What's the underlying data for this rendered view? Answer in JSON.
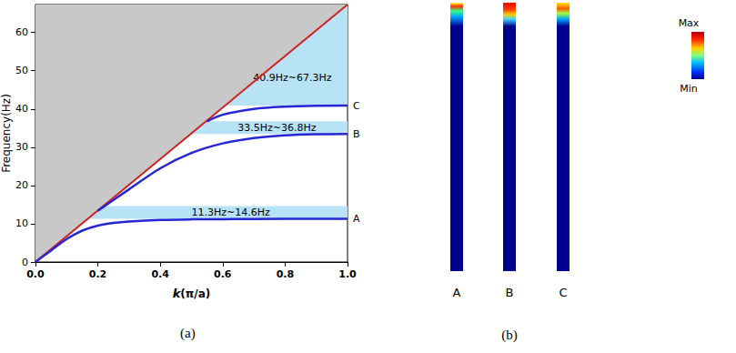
{
  "chart_data": {
    "type": "line",
    "panel_label": "(a)",
    "x_label": "k(π/a)",
    "y_label": "Frequency(Hz)",
    "xlim": [
      0,
      1
    ],
    "ylim": [
      0,
      67.3
    ],
    "xticks": [
      {
        "value": 0,
        "label": "0.0"
      },
      {
        "value": 0.2,
        "label": "0.2"
      },
      {
        "value": 0.4,
        "label": "0.4"
      },
      {
        "value": 0.6,
        "label": "0.6"
      },
      {
        "value": 0.8,
        "label": "0.8"
      },
      {
        "value": 1,
        "label": "1.0"
      }
    ],
    "yticks": [
      0,
      10,
      20,
      30,
      40,
      50,
      60
    ],
    "grid": false,
    "light_line": {
      "color": "#d02020",
      "x": [
        0,
        1
      ],
      "values": [
        0,
        67.3
      ]
    },
    "light_cone": {
      "color": "#c8c8c8"
    },
    "band_gaps": {
      "color": "#b8e2f6",
      "items": [
        {
          "label": "11.3Hz~14.6Hz",
          "range": [
            11.3,
            14.6
          ]
        },
        {
          "label": "33.5Hz~36.8Hz",
          "range": [
            33.5,
            36.8
          ]
        },
        {
          "label": "40.9Hz~67.3Hz",
          "range": [
            40.9,
            67.3
          ]
        }
      ]
    },
    "series": [
      {
        "name": "A",
        "color": "#2626d4",
        "x": [
          0,
          0.05,
          0.1,
          0.15,
          0.2,
          0.25,
          0.3,
          0.4,
          0.5,
          0.6,
          0.8,
          1.0
        ],
        "values": [
          0,
          3.0,
          6.0,
          8.2,
          9.5,
          10.2,
          10.6,
          11.0,
          11.15,
          11.2,
          11.3,
          11.3
        ]
      },
      {
        "name": "B",
        "color": "#2626d4",
        "x": [
          0.2,
          0.3,
          0.4,
          0.5,
          0.6,
          0.7,
          0.8,
          0.9,
          1.0
        ],
        "values": [
          13.4,
          19.0,
          24.5,
          28.5,
          31.0,
          32.4,
          33.1,
          33.4,
          33.5
        ]
      },
      {
        "name": "C",
        "color": "#2626d4",
        "x": [
          0.55,
          0.6,
          0.7,
          0.8,
          0.9,
          1.0
        ],
        "values": [
          36.8,
          38.5,
          40.0,
          40.6,
          40.85,
          40.9
        ]
      }
    ]
  },
  "mode_shapes": {
    "panel_label": "(b)",
    "labels": [
      "A",
      "B",
      "C"
    ],
    "colorbar": {
      "max": "Max",
      "min": "Min"
    }
  }
}
